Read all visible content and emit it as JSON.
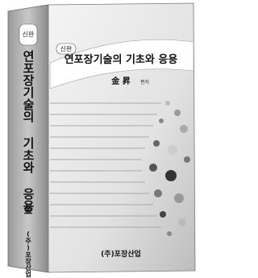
{
  "spine": {
    "badge": "신판",
    "title": "연포장기술의 기초와 응용",
    "author": "金",
    "publisher": "(주)포장산업"
  },
  "cover": {
    "badge": "신판",
    "title": "연포장기술의 기초와 응용",
    "author": "金 昇",
    "author_role": "편저",
    "publisher": "(주)포장산업"
  }
}
